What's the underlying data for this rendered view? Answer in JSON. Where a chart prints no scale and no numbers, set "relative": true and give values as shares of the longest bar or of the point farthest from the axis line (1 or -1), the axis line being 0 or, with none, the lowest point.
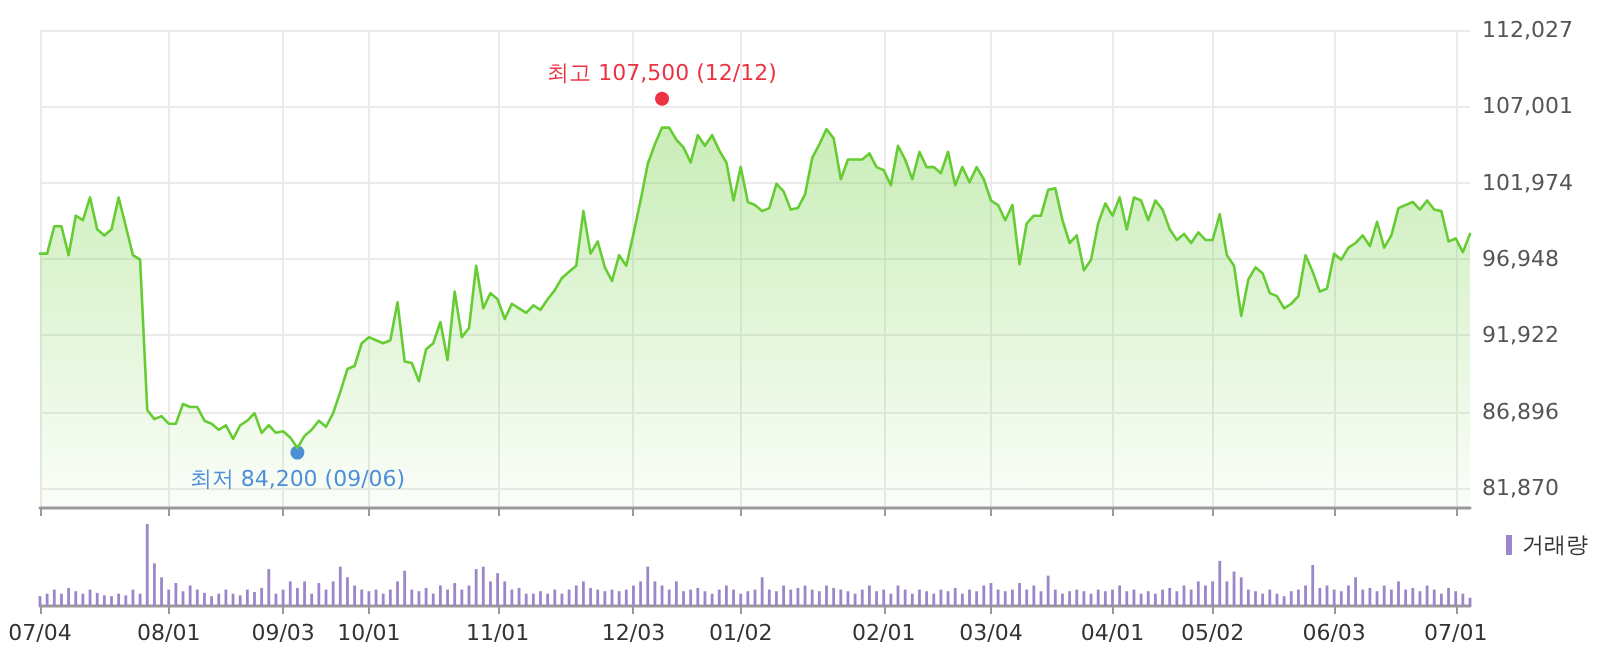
{
  "chart_data": [
    {
      "type": "area",
      "grid": true,
      "tick_labels": "y",
      "categories": [
        null,
        null,
        null,
        null,
        null,
        null,
        null,
        null,
        null,
        null,
        null,
        null,
        null,
        null,
        null,
        null,
        null,
        null,
        null,
        null,
        null,
        null,
        null,
        null,
        null,
        null,
        null,
        null,
        null,
        null,
        null,
        null,
        null,
        null,
        null,
        null,
        null,
        null,
        null,
        null,
        null,
        null,
        null,
        null,
        null,
        null,
        null,
        null,
        null,
        null,
        null,
        null,
        null,
        null,
        null,
        null,
        null,
        null,
        null,
        null,
        null,
        null,
        null,
        null,
        null,
        null,
        null,
        null,
        null,
        null,
        null,
        null,
        null,
        null,
        null,
        null,
        null,
        null,
        null,
        null,
        null,
        null,
        null,
        null,
        null,
        null,
        null,
        null,
        null,
        null,
        null,
        null,
        null,
        null,
        null,
        null,
        null,
        null,
        null,
        null,
        null,
        null,
        null,
        null,
        null,
        null,
        null,
        null,
        null,
        null,
        null,
        null,
        null,
        null,
        null,
        null,
        null,
        null,
        null,
        null,
        null,
        null,
        null,
        null,
        null,
        null,
        null,
        null,
        null,
        null,
        null,
        null,
        null,
        null,
        null,
        null,
        null,
        null,
        null,
        null,
        null,
        null,
        null,
        null,
        null,
        null,
        null,
        null,
        null,
        null,
        null,
        null,
        null,
        null,
        null,
        null,
        null,
        null,
        null,
        null,
        null,
        null,
        null,
        null,
        null,
        null,
        null,
        null,
        null,
        null,
        null,
        null,
        null,
        null,
        null,
        null,
        null,
        null,
        null,
        null,
        null,
        null,
        null,
        null,
        null,
        null,
        null,
        null,
        null,
        null,
        null,
        null,
        null,
        null,
        null,
        null,
        null,
        null,
        null,
        null,
        null
      ],
      "series": [
        {
          "color": "#66cc33",
          "values": [
            97300,
            97300,
            99100,
            99100,
            97200,
            99800,
            99500,
            101000,
            98900,
            98500,
            98900,
            101000,
            99100,
            97200,
            96900,
            87000,
            86400,
            86600,
            86100,
            86100,
            87400,
            87200,
            87200,
            86300,
            86100,
            85700,
            86000,
            85100,
            86000,
            86300,
            86800,
            85500,
            86000,
            85500,
            85600,
            85200,
            84500,
            85300,
            85700,
            86300,
            85900,
            86800,
            88200,
            89700,
            89900,
            91400,
            91800,
            91600,
            91400,
            91600,
            94100,
            90200,
            90100,
            88900,
            91000,
            91400,
            92800,
            90300,
            94800,
            91800,
            92400,
            96500,
            93700,
            94700,
            94300,
            93000,
            94000,
            93700,
            93400,
            93900,
            93600,
            94300,
            94900,
            95700,
            96100,
            96500,
            100100,
            97300,
            98100,
            96400,
            95500,
            97200,
            96500,
            98600,
            100800,
            103200,
            104500,
            105600,
            105600,
            104800,
            104300,
            103300,
            105100,
            104400,
            105100,
            104100,
            103300,
            100800,
            103000,
            100700,
            100500,
            100100,
            100300,
            101900,
            101400,
            100200,
            100300,
            101200,
            103600,
            104500,
            105500,
            104900,
            102200,
            103500,
            103500,
            103500,
            103900,
            103000,
            102800,
            101800,
            104400,
            103500,
            102200,
            104000,
            103000,
            103000,
            102600,
            104000,
            101800,
            103000,
            102000,
            103000,
            102200,
            100800,
            100500,
            99500,
            100500,
            96600,
            99300,
            99800,
            99800,
            101500,
            101600,
            99500,
            98000,
            98500,
            96200,
            96900,
            99300,
            100600,
            99800,
            101000,
            98900,
            101000,
            100800,
            99500,
            100800,
            100200,
            98900,
            98200,
            98600,
            98000,
            98700,
            98200,
            98200,
            99900,
            97200,
            96500,
            93200,
            95600,
            96400,
            96000,
            94700,
            94500,
            93700,
            94000,
            94500,
            97200,
            96100,
            94800,
            95000,
            97300,
            96900,
            97700,
            98000,
            98500,
            97800,
            99400,
            97700,
            98500,
            100300,
            100500,
            100700,
            100200,
            100800,
            100200,
            100100,
            98100,
            98300,
            97400,
            98600
          ]
        },
        {
          "type": "scatter",
          "color": "#e60012",
          "values": [
            null,
            null,
            null,
            null,
            null,
            null,
            null,
            null,
            null,
            null,
            null,
            null,
            null,
            null,
            null,
            null,
            null,
            null,
            null,
            null,
            null,
            null,
            null,
            null,
            null,
            null,
            null,
            null,
            null,
            null,
            null,
            null,
            null,
            null,
            null,
            null,
            null,
            null,
            null,
            null,
            null,
            null,
            null,
            null,
            null,
            null,
            null,
            null,
            null,
            null,
            null,
            null,
            null,
            null,
            null,
            null,
            null,
            null,
            null,
            null,
            null,
            null,
            null,
            null,
            null,
            null,
            null,
            null,
            null,
            null,
            null,
            null,
            null,
            null,
            null,
            null,
            null,
            null,
            null,
            null,
            null,
            null,
            null,
            null,
            null,
            null,
            null,
            107500,
            null,
            null,
            null,
            null,
            null,
            null,
            null,
            null,
            null,
            null,
            null,
            null,
            null,
            null,
            null,
            null,
            null,
            null,
            null,
            null,
            null,
            null,
            null,
            null,
            null,
            null,
            null,
            null,
            null,
            null,
            null,
            null,
            null,
            null,
            null,
            null,
            null,
            null,
            null,
            null,
            null,
            null,
            null,
            null,
            null,
            null,
            null,
            null,
            null,
            null,
            null,
            null,
            null,
            null,
            null,
            null,
            null,
            null,
            null,
            null,
            null,
            null,
            null,
            null,
            null,
            null,
            null,
            null,
            null,
            null,
            null,
            null,
            null,
            null,
            null,
            null,
            null,
            null,
            null,
            null,
            null,
            null,
            null,
            null,
            null,
            null,
            null,
            null,
            null,
            null,
            null,
            null,
            null,
            null,
            null,
            null,
            null,
            null,
            null,
            null,
            null,
            null,
            null,
            null,
            null,
            null,
            null,
            null,
            null,
            null,
            null,
            null,
            null
          ],
          "value_labels": [
            null,
            null,
            null,
            null,
            null,
            null,
            null,
            null,
            null,
            null,
            null,
            null,
            null,
            null,
            null,
            null,
            null,
            null,
            null,
            null,
            null,
            null,
            null,
            null,
            null,
            null,
            null,
            null,
            null,
            null,
            null,
            null,
            null,
            null,
            null,
            null,
            null,
            null,
            null,
            null,
            null,
            null,
            null,
            null,
            null,
            null,
            null,
            null,
            null,
            null,
            null,
            null,
            null,
            null,
            null,
            null,
            null,
            null,
            null,
            null,
            null,
            null,
            null,
            null,
            null,
            null,
            null,
            null,
            null,
            null,
            null,
            null,
            null,
            null,
            null,
            null,
            null,
            null,
            null,
            null,
            null,
            null,
            null,
            null,
            null,
            null,
            null,
            "최고 107,500 (12/12)",
            null,
            null,
            null,
            null,
            null,
            null,
            null,
            null,
            null,
            null,
            null,
            null,
            null,
            null,
            null,
            null,
            null,
            null,
            null,
            null,
            null,
            null,
            null,
            null,
            null,
            null,
            null,
            null,
            null,
            null,
            null,
            null,
            null,
            null,
            null,
            null,
            null,
            null,
            null,
            null,
            null,
            null,
            null,
            null,
            null,
            null,
            null,
            null,
            null,
            null,
            null,
            null,
            null,
            null,
            null,
            null,
            null,
            null,
            null,
            null,
            null,
            null,
            null,
            null,
            null,
            null,
            null,
            null,
            null,
            null,
            null,
            null,
            null,
            null,
            null,
            null,
            null,
            null,
            null,
            null,
            null,
            null,
            null,
            null,
            null,
            null,
            null,
            null,
            null,
            null,
            null,
            null,
            null,
            null,
            null,
            null,
            null,
            null,
            null,
            null,
            null,
            null,
            null,
            null,
            null,
            null,
            null,
            null,
            null,
            null,
            null,
            null,
            null
          ]
        },
        {
          "type": "scatter",
          "color": "#1e6fd9",
          "values": [
            null,
            null,
            null,
            null,
            null,
            null,
            null,
            null,
            null,
            null,
            null,
            null,
            null,
            null,
            null,
            null,
            null,
            null,
            null,
            null,
            null,
            null,
            null,
            null,
            null,
            null,
            null,
            null,
            null,
            null,
            null,
            null,
            null,
            null,
            null,
            null,
            84200,
            null,
            null,
            null,
            null,
            null,
            null,
            null,
            null,
            null,
            null,
            null,
            null,
            null,
            null,
            null,
            null,
            null,
            null,
            null,
            null,
            null,
            null,
            null,
            null,
            null,
            null,
            null,
            null,
            null,
            null,
            null,
            null,
            null,
            null,
            null,
            null,
            null,
            null,
            null,
            null,
            null,
            null,
            null,
            null,
            null,
            null,
            null,
            null,
            null,
            null,
            null,
            null,
            null,
            null,
            null,
            null,
            null,
            null,
            null,
            null,
            null,
            null,
            null,
            null,
            null,
            null,
            null,
            null,
            null,
            null,
            null,
            null,
            null,
            null,
            null,
            null,
            null,
            null,
            null,
            null,
            null,
            null,
            null,
            null,
            null,
            null,
            null,
            null,
            null,
            null,
            null,
            null,
            null,
            null,
            null,
            null,
            null,
            null,
            null,
            null,
            null,
            null,
            null,
            null,
            null,
            null,
            null,
            null,
            null,
            null,
            null,
            null,
            null,
            null,
            null,
            null,
            null,
            null,
            null,
            null,
            null,
            null,
            null,
            null,
            null,
            null,
            null,
            null,
            null,
            null,
            null,
            null,
            null,
            null,
            null,
            null,
            null,
            null,
            null,
            null,
            null,
            null,
            null,
            null,
            null,
            null,
            null,
            null,
            null,
            null,
            null,
            null,
            null,
            null,
            null,
            null,
            null,
            null,
            null,
            null,
            null,
            null,
            null,
            null
          ],
          "value_labels": [
            null,
            null,
            null,
            null,
            null,
            null,
            null,
            null,
            null,
            null,
            null,
            null,
            null,
            null,
            null,
            null,
            null,
            null,
            null,
            null,
            null,
            null,
            null,
            null,
            null,
            null,
            null,
            null,
            null,
            null,
            null,
            null,
            null,
            null,
            null,
            null,
            "최저 84,200 (09/06)",
            null,
            null,
            null,
            null,
            null,
            null,
            null,
            null,
            null,
            null,
            null,
            null,
            null,
            null,
            null,
            null,
            null,
            null,
            null,
            null,
            null,
            null,
            null,
            null,
            null,
            null,
            null,
            null,
            null,
            null,
            null,
            null,
            null,
            null,
            null,
            null,
            null,
            null,
            null,
            null,
            null,
            null,
            null,
            null,
            null,
            null,
            null,
            null,
            null,
            null,
            null,
            null,
            null,
            null,
            null,
            null,
            null,
            null,
            null,
            null,
            null,
            null,
            null,
            null,
            null,
            null,
            null,
            null,
            null,
            null,
            null,
            null,
            null,
            null,
            null,
            null,
            null,
            null,
            null,
            null,
            null,
            null,
            null,
            null,
            null,
            null,
            null,
            null,
            null,
            null,
            null,
            null,
            null,
            null,
            null,
            null,
            null,
            null,
            null,
            null,
            null,
            null,
            null,
            null,
            null,
            null,
            null,
            null,
            null,
            null,
            null,
            null,
            null,
            null,
            null,
            null,
            null,
            null,
            null,
            null,
            null,
            null,
            null,
            null,
            null,
            null,
            null,
            null,
            null,
            null,
            null,
            null,
            null,
            null,
            null,
            null,
            null,
            null,
            null,
            null,
            null,
            null,
            null,
            null,
            null,
            null,
            null,
            null,
            null,
            null,
            null,
            null,
            null,
            null,
            null,
            null,
            null,
            null,
            null,
            null,
            null,
            null,
            null,
            null
          ]
        }
      ],
      "ylim": [
        80550,
        112027
      ],
      "yticks": [
        {
          "value": 81870,
          "label": "81,870"
        },
        {
          "value": 86896,
          "label": "86,896"
        },
        {
          "value": 91922,
          "label": "91,922"
        },
        {
          "value": 96948,
          "label": "96,948"
        },
        {
          "value": 101974,
          "label": "101,974"
        },
        {
          "value": 107001,
          "label": "107,001"
        },
        {
          "value": 112027,
          "label": "112,027"
        }
      ]
    },
    {
      "type": "bar",
      "relative": true,
      "tick_labels": "x",
      "legend": "top right",
      "categories": [
        "07/04",
        null,
        null,
        null,
        null,
        null,
        null,
        null,
        null,
        null,
        null,
        null,
        null,
        null,
        null,
        null,
        null,
        null,
        "08/01",
        null,
        null,
        null,
        null,
        null,
        null,
        null,
        null,
        null,
        null,
        null,
        null,
        null,
        null,
        null,
        "09/03",
        null,
        null,
        null,
        null,
        null,
        null,
        null,
        null,
        null,
        null,
        null,
        "10/01",
        null,
        null,
        null,
        null,
        null,
        null,
        null,
        null,
        null,
        null,
        null,
        null,
        null,
        null,
        null,
        null,
        null,
        "11/01",
        null,
        null,
        null,
        null,
        null,
        null,
        null,
        null,
        null,
        null,
        null,
        null,
        null,
        null,
        null,
        null,
        null,
        null,
        "12/03",
        null,
        null,
        null,
        null,
        null,
        null,
        null,
        null,
        null,
        null,
        null,
        null,
        null,
        null,
        "01/02",
        null,
        null,
        null,
        null,
        null,
        null,
        null,
        null,
        null,
        null,
        null,
        null,
        null,
        null,
        null,
        null,
        null,
        null,
        null,
        "02/01",
        null,
        null,
        null,
        null,
        null,
        null,
        null,
        null,
        null,
        null,
        null,
        null,
        null,
        null,
        "03/04",
        null,
        null,
        null,
        null,
        null,
        null,
        null,
        null,
        null,
        null,
        null,
        null,
        null,
        null,
        null,
        null,
        "04/01",
        null,
        null,
        null,
        null,
        null,
        null,
        null,
        null,
        null,
        null,
        null,
        null,
        null,
        "05/02",
        null,
        null,
        null,
        null,
        null,
        null,
        null,
        null,
        null,
        null,
        null,
        null,
        null,
        null,
        null,
        null,
        "06/03",
        null,
        null,
        null,
        null,
        null,
        null,
        null,
        null,
        null,
        null,
        null,
        null,
        null,
        null,
        null,
        null,
        "07/01",
        null,
        null
      ],
      "series": [
        {
          "name": "거래량",
          "color": "#9b86c9",
          "values": [
            0.12,
            0.15,
            0.2,
            0.15,
            0.22,
            0.18,
            0.15,
            0.2,
            0.16,
            0.13,
            0.12,
            0.15,
            0.13,
            0.2,
            0.15,
            1,
            0.52,
            0.35,
            0.2,
            0.28,
            0.18,
            0.25,
            0.2,
            0.16,
            0.12,
            0.15,
            0.2,
            0.15,
            0.13,
            0.2,
            0.17,
            0.22,
            0.45,
            0.15,
            0.2,
            0.3,
            0.22,
            0.3,
            0.15,
            0.28,
            0.2,
            0.3,
            0.48,
            0.35,
            0.25,
            0.2,
            0.18,
            0.2,
            0.15,
            0.2,
            0.3,
            0.43,
            0.2,
            0.18,
            0.22,
            0.15,
            0.25,
            0.2,
            0.28,
            0.2,
            0.25,
            0.45,
            0.48,
            0.3,
            0.4,
            0.3,
            0.2,
            0.22,
            0.15,
            0.15,
            0.18,
            0.15,
            0.2,
            0.15,
            0.2,
            0.25,
            0.3,
            0.22,
            0.2,
            0.18,
            0.2,
            0.18,
            0.2,
            0.25,
            0.3,
            0.48,
            0.3,
            0.25,
            0.2,
            0.3,
            0.18,
            0.2,
            0.22,
            0.18,
            0.15,
            0.2,
            0.25,
            0.2,
            0.15,
            0.18,
            0.2,
            0.35,
            0.2,
            0.18,
            0.25,
            0.2,
            0.22,
            0.25,
            0.2,
            0.18,
            0.25,
            0.22,
            0.2,
            0.18,
            0.15,
            0.2,
            0.25,
            0.18,
            0.2,
            0.15,
            0.25,
            0.2,
            0.15,
            0.2,
            0.18,
            0.15,
            0.2,
            0.18,
            0.22,
            0.15,
            0.2,
            0.18,
            0.25,
            0.28,
            0.2,
            0.18,
            0.2,
            0.28,
            0.2,
            0.25,
            0.18,
            0.37,
            0.2,
            0.15,
            0.18,
            0.2,
            0.18,
            0.15,
            0.2,
            0.18,
            0.2,
            0.25,
            0.18,
            0.2,
            0.15,
            0.18,
            0.15,
            0.2,
            0.22,
            0.18,
            0.25,
            0.2,
            0.3,
            0.25,
            0.3,
            0.55,
            0.3,
            0.42,
            0.35,
            0.2,
            0.18,
            0.15,
            0.2,
            0.15,
            0.12,
            0.18,
            0.2,
            0.25,
            0.5,
            0.22,
            0.25,
            0.2,
            0.18,
            0.25,
            0.35,
            0.2,
            0.22,
            0.18,
            0.25,
            0.2,
            0.3,
            0.2,
            0.22,
            0.18,
            0.25,
            0.2,
            0.15,
            0.22,
            0.18,
            0.15,
            0.1
          ]
        }
      ]
    }
  ]
}
